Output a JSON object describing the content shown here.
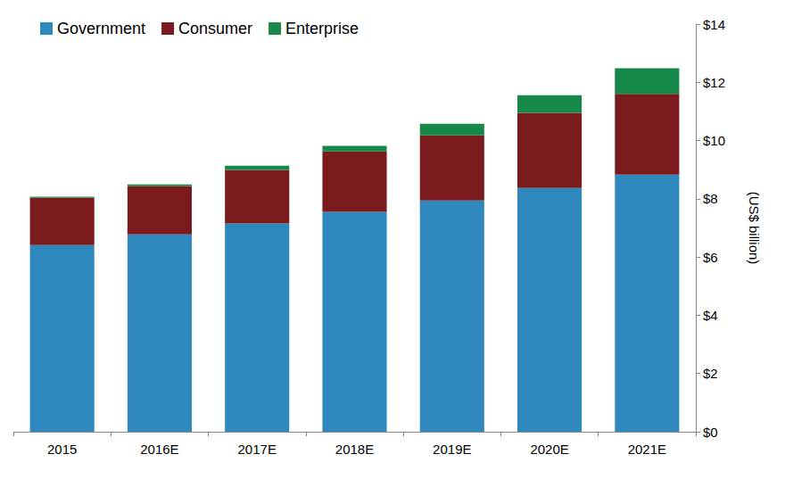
{
  "chart_data": {
    "type": "bar",
    "stacked": true,
    "legend": "top-left",
    "grid": false,
    "categories": [
      "2015",
      "2016E",
      "2017E",
      "2018E",
      "2019E",
      "2020E",
      "2021E"
    ],
    "series": [
      {
        "name": "Government",
        "color": "#2e87bd",
        "values": [
          6.41,
          6.78,
          7.15,
          7.55,
          7.94,
          8.37,
          8.83
        ]
      },
      {
        "name": "Consumer",
        "color": "#7b1a1c",
        "values": [
          1.63,
          1.66,
          1.84,
          2.08,
          2.24,
          2.58,
          2.77
        ]
      },
      {
        "name": "Enterprise",
        "color": "#16894a",
        "values": [
          0.03,
          0.05,
          0.15,
          0.19,
          0.4,
          0.61,
          0.88
        ]
      }
    ],
    "y_label": "(US$ billion)",
    "ylim": [
      0,
      14
    ],
    "yticks": [
      {
        "value": 0,
        "label": "$0"
      },
      {
        "value": 2,
        "label": "$2"
      },
      {
        "value": 4,
        "label": "$4"
      },
      {
        "value": 6,
        "label": "$6"
      },
      {
        "value": 8,
        "label": "$8"
      },
      {
        "value": 10,
        "label": "$10"
      },
      {
        "value": 12,
        "label": "$12"
      },
      {
        "value": 14,
        "label": "$14"
      }
    ]
  }
}
